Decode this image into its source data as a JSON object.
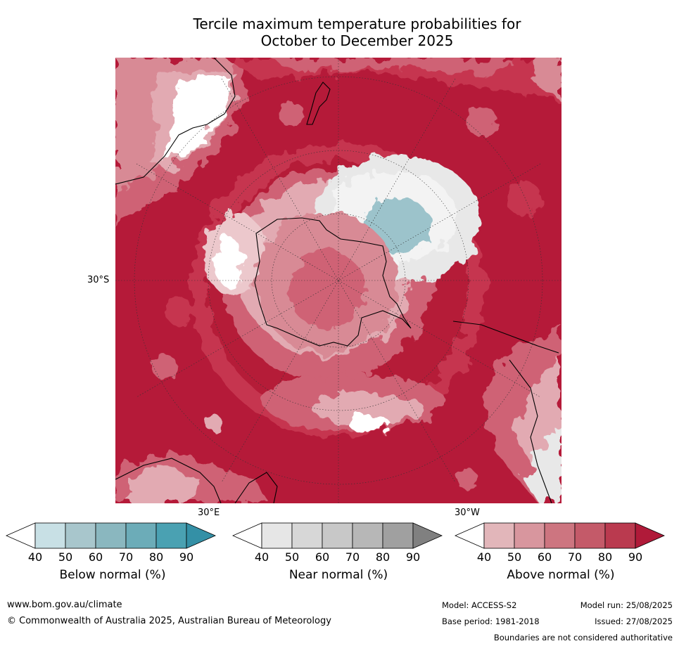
{
  "title_line1": "Tercile maximum temperature probabilities for",
  "title_line2": "October to December 2025",
  "map": {
    "lat_label": "30°S",
    "lon_label_east": "30°E",
    "lon_label_west": "30°W",
    "colors": {
      "above_90": "#b51a39",
      "above_80": "#c6364f",
      "above_70": "#cf6274",
      "above_60": "#d88a95",
      "above_50": "#e2aab2",
      "above_40": "#ecc8cc",
      "near": "#dcdcdc",
      "below_50": "#9cc3cb",
      "white": "#ffffff",
      "coast": "#000000",
      "grid": "#333333"
    }
  },
  "legends": [
    {
      "label": "Below normal (%)",
      "ticks": [
        "40",
        "50",
        "60",
        "70",
        "80",
        "90"
      ],
      "colors": [
        "#ffffff",
        "#c8e0e5",
        "#a8c6cc",
        "#8ab7bf",
        "#6cacb8",
        "#4aa1b2",
        "#3490a6"
      ]
    },
    {
      "label": "Near normal (%)",
      "ticks": [
        "40",
        "50",
        "60",
        "70",
        "80",
        "90"
      ],
      "colors": [
        "#ffffff",
        "#e6e6e6",
        "#d7d7d7",
        "#c8c8c8",
        "#b7b7b7",
        "#a0a0a0",
        "#808080"
      ]
    },
    {
      "label": "Above normal (%)",
      "ticks": [
        "40",
        "50",
        "60",
        "70",
        "80",
        "90"
      ],
      "colors": [
        "#ffffff",
        "#e2b6ba",
        "#d8969e",
        "#cd7580",
        "#c45a69",
        "#ba3a4f",
        "#b01a39"
      ]
    }
  ],
  "footer": {
    "website": "www.bom.gov.au/climate",
    "copyright": "© Commonwealth of Australia 2025, Australian Bureau of Meteorology",
    "model": "Model: ACCESS-S2",
    "model_run": "Model run: 25/08/2025",
    "base_period": "Base period: 1981-2018",
    "issued": "Issued: 27/08/2025",
    "disclaimer": "Boundaries are not considered authoritative"
  }
}
